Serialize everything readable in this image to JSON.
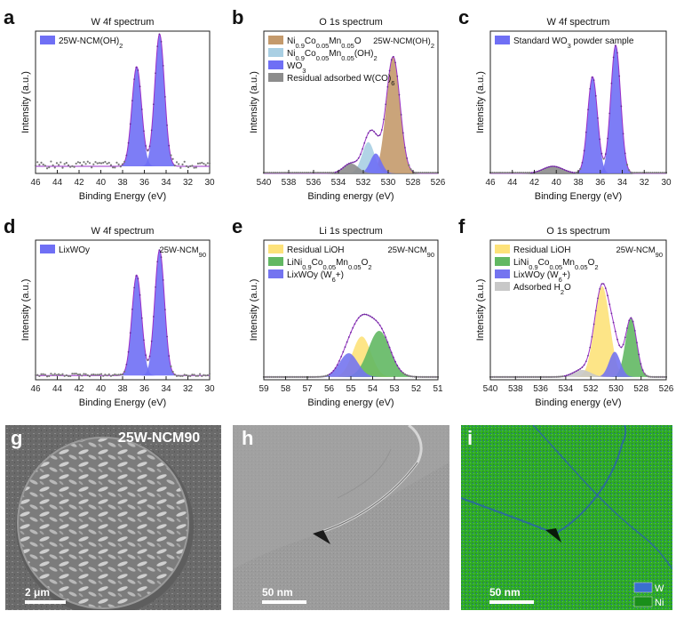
{
  "chart_data": [
    {
      "letter": "a",
      "type": "line",
      "title": "W 4f spectrum",
      "sample": "",
      "xlabel": "Binding Energy (eV)",
      "ylabel": "Intensity (a.u.)",
      "xlim": [
        46,
        30
      ],
      "xticks": [
        46,
        44,
        42,
        40,
        38,
        36,
        34,
        32,
        30
      ],
      "reversed": true,
      "legend": [
        {
          "label": "25W-NCM(OH)",
          "sub": "2",
          "color": "#6f6ff5"
        }
      ],
      "peaks": [
        {
          "center": 36.7,
          "amplitude": 0.7,
          "width": 0.45,
          "color": "#6f6ff5"
        },
        {
          "center": 34.6,
          "amplitude": 0.93,
          "width": 0.45,
          "color": "#6f6ff5"
        }
      ],
      "baseline": 0.05,
      "noise": 0.05
    },
    {
      "letter": "b",
      "type": "line",
      "title": "O 1s spectrum",
      "sample": "25W-NCM(OH)2",
      "xlabel": "Binding energy (eV)",
      "ylabel": "Intensity (a.u.)",
      "xlim": [
        540,
        526
      ],
      "xticks": [
        540,
        538,
        536,
        534,
        532,
        530,
        528,
        526
      ],
      "reversed": true,
      "legend": [
        {
          "label": "Ni0.9Co0.05Mn0.05O",
          "color": "#c49a6c"
        },
        {
          "label": "Ni0.9Co0.05Mn0.05(OH)2",
          "color": "#a9cfe3"
        },
        {
          "label": "WO3",
          "color": "#6f6ff5"
        },
        {
          "label": "Residual adsorbed W(CO)6",
          "color": "#8c8c8c"
        }
      ],
      "peaks": [
        {
          "center": 529.6,
          "amplitude": 0.82,
          "width": 0.55,
          "color": "#c49a6c"
        },
        {
          "center": 531.6,
          "amplitude": 0.22,
          "width": 0.5,
          "color": "#a9cfe3"
        },
        {
          "center": 531.0,
          "amplitude": 0.14,
          "width": 0.45,
          "color": "#6f6ff5"
        },
        {
          "center": 533.0,
          "amplitude": 0.07,
          "width": 0.6,
          "color": "#8c8c8c"
        }
      ],
      "baseline": 0.0,
      "noise": 0.0
    },
    {
      "letter": "c",
      "type": "line",
      "title": "W 4f spectrum",
      "sample": "",
      "xlabel": "Binding Energy (eV)",
      "ylabel": "Intensity (a.u.)",
      "xlim": [
        46,
        30
      ],
      "xticks": [
        46,
        44,
        42,
        40,
        38,
        36,
        34,
        32,
        30
      ],
      "reversed": true,
      "legend": [
        {
          "label": "Standard WO3 powder sample",
          "color": "#6f6ff5"
        }
      ],
      "peaks": [
        {
          "center": 36.7,
          "amplitude": 0.68,
          "width": 0.45,
          "color": "#6f6ff5"
        },
        {
          "center": 34.6,
          "amplitude": 0.9,
          "width": 0.45,
          "color": "#6f6ff5"
        },
        {
          "center": 40.3,
          "amplitude": 0.05,
          "width": 0.9,
          "color": "#8c8c8c"
        }
      ],
      "baseline": 0.0,
      "noise": 0.0
    },
    {
      "letter": "d",
      "type": "line",
      "title": "W 4f spectrum",
      "sample": "25W-NCM90",
      "xlabel": "Binding Energy (eV)",
      "ylabel": "Intensity (a.u.)",
      "xlim": [
        46,
        30
      ],
      "xticks": [
        46,
        44,
        42,
        40,
        38,
        36,
        34,
        32,
        30
      ],
      "reversed": true,
      "legend": [
        {
          "label": "LixWOy",
          "color": "#6f6ff5"
        }
      ],
      "peaks": [
        {
          "center": 36.7,
          "amplitude": 0.72,
          "width": 0.45,
          "color": "#6f6ff5"
        },
        {
          "center": 34.6,
          "amplitude": 0.9,
          "width": 0.45,
          "color": "#6f6ff5"
        }
      ],
      "baseline": 0.03,
      "noise": 0.02
    },
    {
      "letter": "e",
      "type": "line",
      "title": "Li 1s spectrum",
      "sample": "25W-NCM90",
      "xlabel": "Binding energy (eV)",
      "ylabel": "Intensity (a.u.)",
      "xlim": [
        59,
        51
      ],
      "xticks": [
        59,
        58,
        57,
        56,
        55,
        54,
        53,
        52,
        51
      ],
      "reversed": true,
      "legend": [
        {
          "label": "Residual LiOH",
          "color": "#fde27a"
        },
        {
          "label": "LiNi0.9Co0.05Mn0.05O2",
          "color": "#62b863"
        },
        {
          "label": "LixWOy (W6+)",
          "color": "#7474f0"
        }
      ],
      "peaks": [
        {
          "center": 54.5,
          "amplitude": 0.29,
          "width": 0.42,
          "color": "#fde27a"
        },
        {
          "center": 53.7,
          "amplitude": 0.33,
          "width": 0.5,
          "color": "#62b863"
        },
        {
          "center": 55.1,
          "amplitude": 0.17,
          "width": 0.42,
          "color": "#7474f0"
        }
      ],
      "baseline": 0.02,
      "noise": 0.0
    },
    {
      "letter": "f",
      "type": "line",
      "title": "O 1s spectrum",
      "sample": "25W-NCM90",
      "xlabel": "Binding energy (eV)",
      "ylabel": "Intensity (a.u.)",
      "xlim": [
        540,
        526
      ],
      "xticks": [
        540,
        538,
        536,
        534,
        532,
        530,
        528,
        526
      ],
      "reversed": true,
      "legend": [
        {
          "label": "Residual LiOH",
          "color": "#fde27a"
        },
        {
          "label": "LiNi0.9Co0.05Mn0.05O2",
          "color": "#62b863"
        },
        {
          "label": "LixWOy (W6+)",
          "color": "#7474f0"
        },
        {
          "label": "Adsorbed H2O",
          "color": "#c8c8c8"
        }
      ],
      "peaks": [
        {
          "center": 531.1,
          "amplitude": 0.65,
          "width": 0.6,
          "color": "#fde27a"
        },
        {
          "center": 528.8,
          "amplitude": 0.42,
          "width": 0.45,
          "color": "#62b863"
        },
        {
          "center": 530.1,
          "amplitude": 0.18,
          "width": 0.45,
          "color": "#7474f0"
        },
        {
          "center": 532.7,
          "amplitude": 0.05,
          "width": 0.7,
          "color": "#c8c8c8"
        }
      ],
      "baseline": 0.02,
      "noise": 0.0
    }
  ],
  "images": {
    "g": {
      "letter": "g",
      "label": "25W-NCM90",
      "scale": "2 μm"
    },
    "h": {
      "letter": "h",
      "scale": "50 nm"
    },
    "i": {
      "letter": "i",
      "scale": "50 nm",
      "legend": [
        {
          "label": "W",
          "color": "#3a6fcf"
        },
        {
          "label": "Ni",
          "color": "#1a8f1a"
        }
      ]
    }
  }
}
